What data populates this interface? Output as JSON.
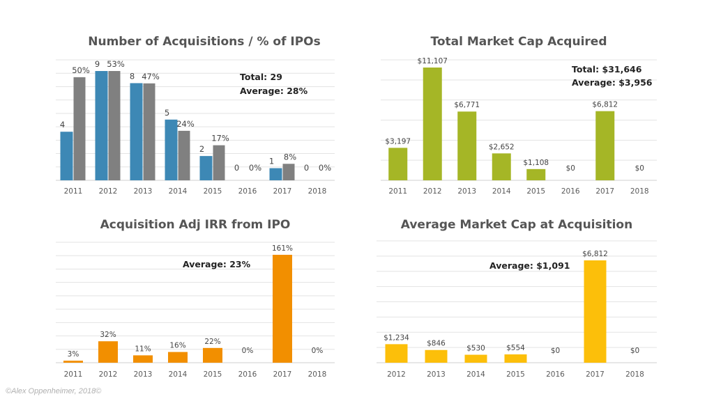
{
  "credit": "©Alex Oppenheimer, 2018©",
  "chart_data": [
    {
      "type": "bar",
      "title": "Number of Acquisitions / % of IPOs",
      "categories": [
        "2011",
        "2012",
        "2013",
        "2014",
        "2015",
        "2016",
        "2017",
        "2018"
      ],
      "series": [
        {
          "values": [
            4,
            9,
            8,
            5,
            2,
            0,
            1,
            0
          ],
          "color": "#3d88b5",
          "labels": [
            "4",
            "9",
            "8",
            "5",
            "2",
            "0",
            "1",
            "0"
          ]
        },
        {
          "values": [
            50,
            53,
            47,
            24,
            17,
            0,
            8,
            0
          ],
          "color": "#808080",
          "labels": [
            "50%",
            "53%",
            "47%",
            "24%",
            "17%",
            "0%",
            "8%",
            "0%"
          ]
        }
      ],
      "annotations": [
        "Total: 29",
        "Average: 28%"
      ],
      "grid": true
    },
    {
      "type": "bar",
      "title": "Total Market Cap Acquired",
      "categories": [
        "2011",
        "2012",
        "2013",
        "2014",
        "2015",
        "2016",
        "2017",
        "2018"
      ],
      "series": [
        {
          "values": [
            3197,
            11107,
            6771,
            2652,
            1108,
            0,
            6812,
            0
          ],
          "color": "#a5b626",
          "labels": [
            "$3,197",
            "$11,107",
            "$6,771",
            "$2,652",
            "$1,108",
            "$0",
            "$6,812",
            "$0"
          ]
        }
      ],
      "annotations": [
        "Total: $31,646",
        "Average: $3,956"
      ],
      "grid": true
    },
    {
      "type": "bar",
      "title": "Acquisition Adj IRR from IPO",
      "categories": [
        "2011",
        "2012",
        "2013",
        "2014",
        "2015",
        "2016",
        "2017",
        "2018"
      ],
      "series": [
        {
          "values": [
            3,
            32,
            11,
            16,
            22,
            0,
            161,
            0
          ],
          "color": "#f28f00",
          "labels": [
            "3%",
            "32%",
            "11%",
            "16%",
            "22%",
            "0%",
            "161%",
            "0%"
          ]
        }
      ],
      "annotations": [
        "Average: 23%"
      ],
      "grid": true
    },
    {
      "type": "bar",
      "title": "Average Market Cap at Acquisition",
      "categories": [
        "2012",
        "2013",
        "2014",
        "2015",
        "2016",
        "2017",
        "2018"
      ],
      "series": [
        {
          "values": [
            1234,
            846,
            530,
            554,
            0,
            6812,
            0
          ],
          "color": "#fcbf0a",
          "labels": [
            "$1,234",
            "$846",
            "$530",
            "$554",
            "$0",
            "$6,812",
            "$0"
          ]
        }
      ],
      "annotations": [
        "Average: $1,091"
      ],
      "grid": true
    }
  ]
}
